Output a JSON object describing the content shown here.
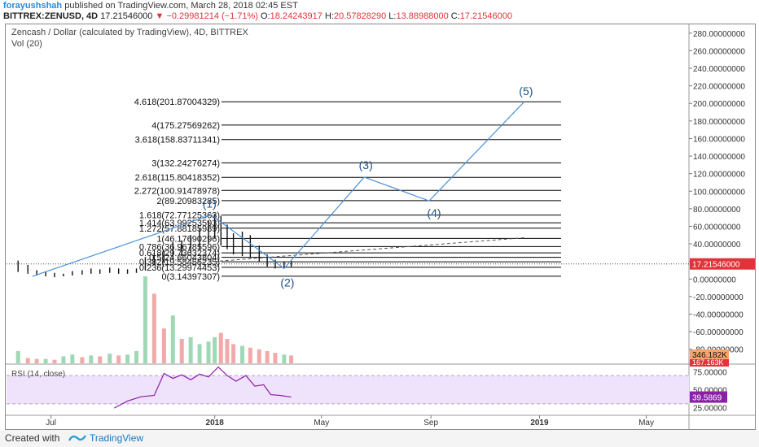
{
  "header": {
    "author": "forayushshah",
    "published": "published on TradingView.com, March 28, 2018 02:45 EST",
    "symbol": "BITTREX:ZENUSD, 4D",
    "last": "17.21546000",
    "change": "−0.29981214 (−1.71%)",
    "open_label": "O:",
    "open": "18.24243917",
    "high_label": "H:",
    "high": "20.57828290",
    "low_label": "L:",
    "low": "13.88988000",
    "close_label": "C:",
    "close": "17.21546000"
  },
  "footer": {
    "created": "Created with",
    "brand": "TradingView"
  },
  "colors": {
    "wave": "#4a90d9",
    "fib": "#000000",
    "vol_up": "#8fd1a8",
    "vol_down": "#ef9a9a",
    "rsi_line": "#8b1fa8",
    "rsi_band": "#efe2fb",
    "vol_ma": "#f5a46b"
  },
  "chart_data": [
    {
      "type": "line",
      "title": "Zencash / Dollar (calculated by TradingView), 4D, BITTREX",
      "x_ticks": [
        "Jul",
        "2018",
        "May",
        "Sep",
        "2019",
        "May"
      ],
      "y_ticks": [
        "280.00000000",
        "260.00000000",
        "240.00000000",
        "220.00000000",
        "200.00000000",
        "180.00000000",
        "160.00000000",
        "140.00000000",
        "120.00000000",
        "100.00000000",
        "80.00000000",
        "60.00000000",
        "40.00000000",
        "20.00000000",
        "0.00000000",
        "-20.00000000",
        "-40.00000000",
        "-60.00000000",
        "-80.00000000"
      ],
      "ylim": [
        -96,
        290
      ],
      "last_price_label": "17.21546000",
      "price_series": {
        "name": "ZENUSD",
        "x": [
          "2017-05-25",
          "2017-06-05",
          "2017-06-15",
          "2017-06-25",
          "2017-07-05",
          "2017-07-15",
          "2017-07-25",
          "2017-08-05",
          "2017-08-15",
          "2017-08-25",
          "2017-09-05",
          "2017-09-15",
          "2017-09-25",
          "2017-10-05",
          "2017-10-15",
          "2017-10-25",
          "2017-11-05",
          "2017-11-15",
          "2017-11-25",
          "2017-12-05",
          "2017-12-15",
          "2017-12-25",
          "2018-01-01",
          "2018-01-08",
          "2018-01-15",
          "2018-01-22",
          "2018-02-01",
          "2018-02-10",
          "2018-02-20",
          "2018-03-01",
          "2018-03-10",
          "2018-03-20",
          "2018-03-28"
        ],
        "high": [
          21,
          16,
          10,
          8,
          7,
          6,
          9,
          10,
          12,
          11,
          13,
          12,
          11,
          12,
          25,
          30,
          32,
          42,
          44,
          50,
          58,
          66,
          74,
          72,
          62,
          52,
          54,
          50,
          38,
          28,
          22,
          20,
          20.6
        ],
        "low": [
          8,
          6,
          4,
          3,
          2,
          3,
          4,
          5,
          6,
          6,
          7,
          6,
          6,
          7,
          10,
          16,
          18,
          22,
          26,
          30,
          34,
          40,
          46,
          38,
          34,
          28,
          26,
          24,
          20,
          14,
          12,
          12,
          13.9
        ]
      },
      "fib_levels": [
        {
          "label": "4.618(201.87004329)",
          "value": 201.87
        },
        {
          "label": "4(175.27569262)",
          "value": 175.28
        },
        {
          "label": "3.618(158.83711341)",
          "value": 158.84
        },
        {
          "label": "3(132.24276274)",
          "value": 132.24
        },
        {
          "label": "2.618(115.80418352)",
          "value": 115.8
        },
        {
          "label": "2.272(100.91478978)",
          "value": 100.91
        },
        {
          "label": "2(89.20983285)",
          "value": 89.21
        },
        {
          "label": "1.618(72.77125363)",
          "value": 72.77
        },
        {
          "label": "1.414(63.99253593)",
          "value": 63.99
        },
        {
          "label": "1.272(57.88185989)",
          "value": 57.88
        },
        {
          "label": "1(46.17690296)",
          "value": 46.18
        },
        {
          "label": "0.786(36.96785596)",
          "value": 36.97
        },
        {
          "label": "0.618(29.73632374)",
          "value": 29.74
        },
        {
          "label": "0.5(24.66043804)",
          "value": 24.66
        },
        {
          "label": "0.382(19.58455235)",
          "value": 19.58
        },
        {
          "label": "0.236(13.29974453)",
          "value": 13.3
        },
        {
          "label": "0(3.14397307)",
          "value": 3.14
        }
      ],
      "wave_labels": [
        {
          "label": "(1)",
          "x": "2017-12-28",
          "y": 74
        },
        {
          "label": "(2)",
          "x": "2018-03-20",
          "y": 12
        },
        {
          "label": "(3)",
          "x": "2018-06-18",
          "y": 116
        },
        {
          "label": "(4)",
          "x": "2018-08-30",
          "y": 89
        },
        {
          "label": "(5)",
          "x": "2018-12-15",
          "y": 202
        }
      ],
      "wave_path": {
        "x": [
          "2017-06-10",
          "2017-12-28",
          "2018-03-20",
          "2018-06-18",
          "2018-08-30",
          "2018-12-15"
        ],
        "y": [
          3,
          73,
          12,
          116,
          89,
          202
        ]
      },
      "trend_line": {
        "x": [
          "2017-11-10",
          "2018-12-15"
        ],
        "y": [
          16,
          47
        ]
      }
    },
    {
      "type": "bar",
      "title": "Vol (20)",
      "last_value_labels": [
        "346.182K",
        "167.163K"
      ],
      "values": [
        14,
        6,
        5,
        5,
        4,
        8,
        10,
        7,
        9,
        8,
        11,
        9,
        10,
        14,
        100,
        80,
        40,
        55,
        28,
        30,
        22,
        25,
        30,
        35,
        28,
        22,
        20,
        18,
        16,
        14,
        12,
        10,
        9
      ],
      "up": [
        true,
        false,
        false,
        true,
        false,
        true,
        true,
        false,
        true,
        false,
        true,
        false,
        true,
        true,
        true,
        false,
        false,
        true,
        false,
        true,
        true,
        true,
        true,
        false,
        false,
        false,
        true,
        false,
        false,
        false,
        false,
        true,
        false
      ]
    },
    {
      "type": "line",
      "title": "RSI (14, close)",
      "y_ticks": [
        "75.00000",
        "50.00000",
        "25.00000"
      ],
      "ylim": [
        15,
        85
      ],
      "band": [
        30,
        70
      ],
      "last_value_label": "39.5869",
      "x": [
        "2017-09-10",
        "2017-09-25",
        "2017-10-10",
        "2017-10-25",
        "2017-11-05",
        "2017-11-15",
        "2017-11-25",
        "2017-12-05",
        "2017-12-15",
        "2017-12-25",
        "2018-01-05",
        "2018-01-15",
        "2018-01-25",
        "2018-02-05",
        "2018-02-15",
        "2018-02-25",
        "2018-03-05",
        "2018-03-15",
        "2018-03-28"
      ],
      "values": [
        24,
        34,
        40,
        42,
        73,
        66,
        71,
        64,
        72,
        68,
        82,
        70,
        62,
        70,
        55,
        57,
        43,
        42,
        39.6
      ]
    }
  ]
}
